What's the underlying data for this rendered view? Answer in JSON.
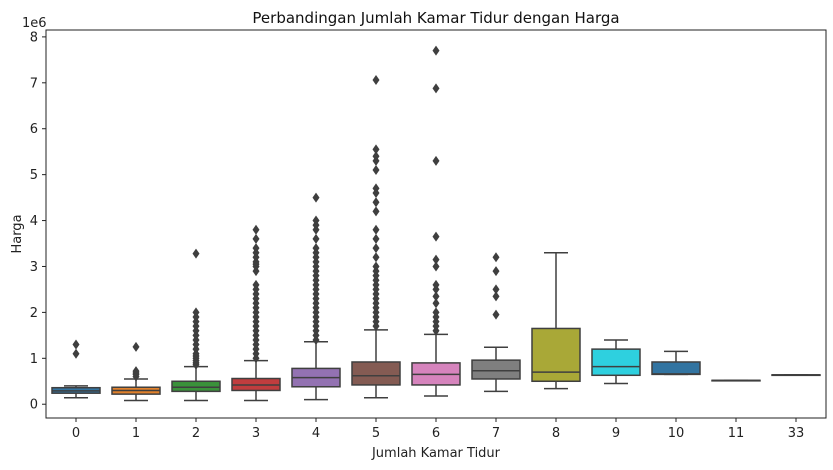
{
  "chart_data": {
    "type": "box",
    "title": "Perbandingan Jumlah Kamar Tidur dengan Harga",
    "xlabel": "Jumlah Kamar Tidur",
    "ylabel": "Harga",
    "y_offset_label": "1e6",
    "ylim": [
      -0.3,
      8.15
    ],
    "yticks": [
      0,
      1,
      2,
      3,
      4,
      5,
      6,
      7,
      8
    ],
    "grid": false,
    "categories": [
      "0",
      "1",
      "2",
      "3",
      "4",
      "5",
      "6",
      "7",
      "8",
      "9",
      "10",
      "11",
      "33"
    ],
    "boxes": [
      {
        "category": "0",
        "color": "#3274a1",
        "whisker_low": 0.14,
        "q1": 0.24,
        "median": 0.29,
        "q3": 0.36,
        "whisker_high": 0.4,
        "outliers": [
          1.1,
          1.3
        ]
      },
      {
        "category": "1",
        "color": "#e1812c",
        "whisker_low": 0.08,
        "q1": 0.22,
        "median": 0.3,
        "q3": 0.37,
        "whisker_high": 0.55,
        "outliers": [
          0.6,
          0.65,
          0.68,
          0.72,
          1.25
        ]
      },
      {
        "category": "2",
        "color": "#3a923a",
        "whisker_low": 0.08,
        "q1": 0.28,
        "median": 0.37,
        "q3": 0.5,
        "whisker_high": 0.82,
        "outliers": [
          0.86,
          0.9,
          0.95,
          1.0,
          1.05,
          1.1,
          1.2,
          1.3,
          1.4,
          1.5,
          1.6,
          1.7,
          1.8,
          1.9,
          2.0,
          3.28
        ]
      },
      {
        "category": "3",
        "color": "#c03d3e",
        "whisker_low": 0.08,
        "q1": 0.3,
        "median": 0.42,
        "q3": 0.56,
        "whisker_high": 0.95,
        "outliers": [
          1.0,
          1.1,
          1.2,
          1.3,
          1.4,
          1.5,
          1.6,
          1.7,
          1.8,
          1.9,
          2.0,
          2.1,
          2.2,
          2.3,
          2.4,
          2.5,
          2.6,
          2.9,
          3.0,
          3.05,
          3.1,
          3.2,
          3.3,
          3.4,
          3.6,
          3.8
        ]
      },
      {
        "category": "4",
        "color": "#9372b2",
        "whisker_low": 0.1,
        "q1": 0.38,
        "median": 0.58,
        "q3": 0.78,
        "whisker_high": 1.36,
        "outliers": [
          1.4,
          1.5,
          1.6,
          1.7,
          1.8,
          1.9,
          2.0,
          2.1,
          2.2,
          2.3,
          2.4,
          2.5,
          2.6,
          2.7,
          2.8,
          2.9,
          3.0,
          3.1,
          3.2,
          3.3,
          3.4,
          3.6,
          3.8,
          3.9,
          4.0,
          4.5
        ]
      },
      {
        "category": "5",
        "color": "#845b53",
        "whisker_low": 0.14,
        "q1": 0.42,
        "median": 0.62,
        "q3": 0.92,
        "whisker_high": 1.62,
        "outliers": [
          1.7,
          1.8,
          1.9,
          2.0,
          2.1,
          2.2,
          2.3,
          2.4,
          2.5,
          2.6,
          2.7,
          2.8,
          2.9,
          3.0,
          3.2,
          3.4,
          3.6,
          3.8,
          4.2,
          4.4,
          4.6,
          4.7,
          5.1,
          5.3,
          5.4,
          5.55,
          7.06
        ]
      },
      {
        "category": "6",
        "color": "#d684bd",
        "whisker_low": 0.18,
        "q1": 0.42,
        "median": 0.65,
        "q3": 0.9,
        "whisker_high": 1.52,
        "outliers": [
          1.6,
          1.7,
          1.8,
          1.9,
          2.0,
          2.2,
          2.35,
          2.5,
          2.6,
          3.0,
          3.15,
          3.65,
          5.3,
          6.88,
          7.7
        ]
      },
      {
        "category": "7",
        "color": "#7f7f7f",
        "whisker_low": 0.28,
        "q1": 0.55,
        "median": 0.73,
        "q3": 0.96,
        "whisker_high": 1.24,
        "outliers": [
          1.95,
          2.35,
          2.5,
          2.9,
          3.2
        ]
      },
      {
        "category": "8",
        "color": "#a9a837",
        "whisker_low": 0.34,
        "q1": 0.5,
        "median": 0.7,
        "q3": 1.65,
        "whisker_high": 3.3,
        "outliers": []
      },
      {
        "category": "9",
        "color": "#2ed0df",
        "whisker_low": 0.45,
        "q1": 0.63,
        "median": 0.82,
        "q3": 1.2,
        "whisker_high": 1.4,
        "outliers": []
      },
      {
        "category": "10",
        "color": "#3274a1",
        "whisker_low": 0.65,
        "q1": 0.65,
        "median": 0.66,
        "q3": 0.92,
        "whisker_high": 1.15,
        "outliers": []
      },
      {
        "category": "11",
        "color": "#e1812c",
        "whisker_low": 0.52,
        "q1": 0.52,
        "median": 0.52,
        "q3": 0.52,
        "whisker_high": 0.52,
        "outliers": []
      },
      {
        "category": "33",
        "color": "#3a923a",
        "whisker_low": 0.64,
        "q1": 0.64,
        "median": 0.64,
        "q3": 0.64,
        "whisker_high": 0.64,
        "outliers": []
      }
    ]
  }
}
